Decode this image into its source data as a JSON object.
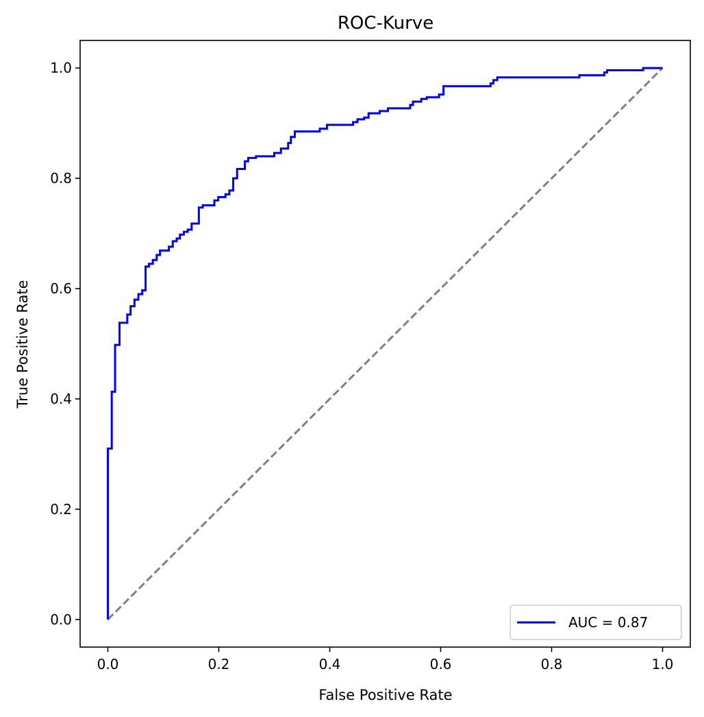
{
  "chart_data": {
    "type": "line",
    "title": "ROC-Kurve",
    "xlabel": "False Positive Rate",
    "ylabel": "True Positive Rate",
    "xlim": [
      -0.05,
      1.05
    ],
    "ylim": [
      -0.05,
      1.05
    ],
    "x_ticks": [
      0.0,
      0.2,
      0.4,
      0.6,
      0.8,
      1.0
    ],
    "y_ticks": [
      0.0,
      0.2,
      0.4,
      0.6,
      0.8,
      1.0
    ],
    "x_tick_labels": [
      "0.0",
      "0.2",
      "0.4",
      "0.6",
      "0.8",
      "1.0"
    ],
    "y_tick_labels": [
      "0.0",
      "0.2",
      "0.4",
      "0.6",
      "0.8",
      "1.0"
    ],
    "grid": false,
    "legend_position": "lower-right",
    "series": [
      {
        "name": "AUC = 0.87",
        "color": "#0000ff",
        "style": "solid",
        "step": true,
        "points": [
          [
            0.0,
            0.0
          ],
          [
            0.0,
            0.31
          ],
          [
            0.007,
            0.31
          ],
          [
            0.007,
            0.413
          ],
          [
            0.013,
            0.413
          ],
          [
            0.013,
            0.498
          ],
          [
            0.021,
            0.498
          ],
          [
            0.021,
            0.538
          ],
          [
            0.035,
            0.538
          ],
          [
            0.035,
            0.553
          ],
          [
            0.041,
            0.553
          ],
          [
            0.041,
            0.568
          ],
          [
            0.048,
            0.568
          ],
          [
            0.048,
            0.58
          ],
          [
            0.055,
            0.58
          ],
          [
            0.055,
            0.59
          ],
          [
            0.062,
            0.59
          ],
          [
            0.062,
            0.597
          ],
          [
            0.068,
            0.597
          ],
          [
            0.068,
            0.64
          ],
          [
            0.074,
            0.64
          ],
          [
            0.074,
            0.645
          ],
          [
            0.081,
            0.645
          ],
          [
            0.081,
            0.652
          ],
          [
            0.088,
            0.652
          ],
          [
            0.088,
            0.661
          ],
          [
            0.094,
            0.661
          ],
          [
            0.094,
            0.669
          ],
          [
            0.11,
            0.669
          ],
          [
            0.11,
            0.676
          ],
          [
            0.117,
            0.676
          ],
          [
            0.117,
            0.686
          ],
          [
            0.124,
            0.686
          ],
          [
            0.124,
            0.691
          ],
          [
            0.13,
            0.691
          ],
          [
            0.13,
            0.698
          ],
          [
            0.137,
            0.698
          ],
          [
            0.137,
            0.703
          ],
          [
            0.144,
            0.703
          ],
          [
            0.144,
            0.707
          ],
          [
            0.151,
            0.707
          ],
          [
            0.151,
            0.718
          ],
          [
            0.164,
            0.718
          ],
          [
            0.164,
            0.747
          ],
          [
            0.171,
            0.747
          ],
          [
            0.171,
            0.751
          ],
          [
            0.192,
            0.751
          ],
          [
            0.192,
            0.76
          ],
          [
            0.199,
            0.76
          ],
          [
            0.199,
            0.766
          ],
          [
            0.212,
            0.766
          ],
          [
            0.212,
            0.771
          ],
          [
            0.219,
            0.771
          ],
          [
            0.219,
            0.778
          ],
          [
            0.226,
            0.778
          ],
          [
            0.226,
            0.8
          ],
          [
            0.233,
            0.8
          ],
          [
            0.233,
            0.817
          ],
          [
            0.247,
            0.817
          ],
          [
            0.247,
            0.831
          ],
          [
            0.253,
            0.831
          ],
          [
            0.253,
            0.837
          ],
          [
            0.267,
            0.837
          ],
          [
            0.267,
            0.84
          ],
          [
            0.3,
            0.84
          ],
          [
            0.3,
            0.846
          ],
          [
            0.312,
            0.846
          ],
          [
            0.312,
            0.854
          ],
          [
            0.325,
            0.854
          ],
          [
            0.325,
            0.864
          ],
          [
            0.33,
            0.864
          ],
          [
            0.33,
            0.875
          ],
          [
            0.337,
            0.875
          ],
          [
            0.337,
            0.885
          ],
          [
            0.382,
            0.885
          ],
          [
            0.382,
            0.89
          ],
          [
            0.395,
            0.89
          ],
          [
            0.395,
            0.897
          ],
          [
            0.442,
            0.897
          ],
          [
            0.442,
            0.902
          ],
          [
            0.45,
            0.902
          ],
          [
            0.45,
            0.907
          ],
          [
            0.462,
            0.907
          ],
          [
            0.462,
            0.91
          ],
          [
            0.47,
            0.91
          ],
          [
            0.47,
            0.918
          ],
          [
            0.49,
            0.918
          ],
          [
            0.49,
            0.922
          ],
          [
            0.505,
            0.922
          ],
          [
            0.505,
            0.927
          ],
          [
            0.545,
            0.927
          ],
          [
            0.545,
            0.933
          ],
          [
            0.55,
            0.933
          ],
          [
            0.55,
            0.939
          ],
          [
            0.565,
            0.939
          ],
          [
            0.565,
            0.944
          ],
          [
            0.575,
            0.944
          ],
          [
            0.575,
            0.947
          ],
          [
            0.597,
            0.947
          ],
          [
            0.597,
            0.952
          ],
          [
            0.605,
            0.952
          ],
          [
            0.605,
            0.967
          ],
          [
            0.69,
            0.967
          ],
          [
            0.69,
            0.972
          ],
          [
            0.695,
            0.972
          ],
          [
            0.695,
            0.978
          ],
          [
            0.702,
            0.978
          ],
          [
            0.702,
            0.983
          ],
          [
            0.85,
            0.983
          ],
          [
            0.85,
            0.987
          ],
          [
            0.895,
            0.987
          ],
          [
            0.895,
            0.992
          ],
          [
            0.9,
            0.992
          ],
          [
            0.9,
            0.996
          ],
          [
            0.965,
            0.996
          ],
          [
            0.965,
            1.0
          ],
          [
            1.0,
            1.0
          ]
        ]
      },
      {
        "name": "",
        "color": "#808080",
        "style": "dashed",
        "points": [
          [
            0.0,
            0.0
          ],
          [
            1.0,
            1.0
          ]
        ]
      }
    ]
  }
}
